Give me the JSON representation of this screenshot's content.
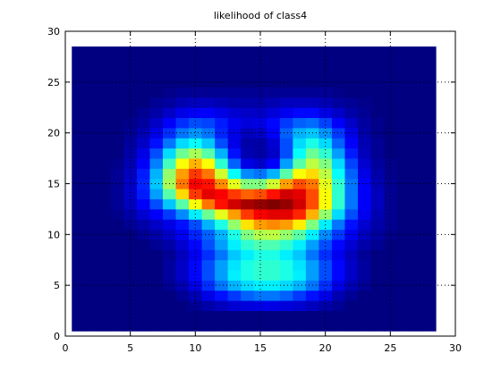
{
  "figure": {
    "background": "#ffffff",
    "axes_color": "#000000",
    "grid_color": "#000000"
  },
  "chart_data": {
    "type": "heatmap",
    "title": "likelihood of class4",
    "xlabel": "",
    "ylabel": "",
    "xlim": [
      0,
      30
    ],
    "ylim": [
      0,
      30
    ],
    "xticks": [
      0,
      5,
      10,
      15,
      20,
      25,
      30
    ],
    "yticks": [
      0,
      5,
      10,
      15,
      20,
      25,
      30
    ],
    "grid": "dotted",
    "colormap": "jet",
    "x_range": [
      1,
      28
    ],
    "y_range": [
      1,
      28
    ],
    "values_note_scale": [
      0,
      1
    ],
    "values": [
      [
        0,
        0,
        0,
        0,
        0,
        0,
        0,
        0,
        0,
        0,
        0,
        0,
        0,
        0,
        0,
        0,
        0,
        0,
        0,
        0,
        0,
        0,
        0,
        0,
        0,
        0,
        0,
        0
      ],
      [
        0,
        0,
        0,
        0,
        0,
        0,
        0,
        0,
        0,
        0,
        0,
        0,
        0,
        0,
        0,
        0,
        0,
        0,
        0,
        0,
        0,
        0,
        0,
        0,
        0,
        0,
        0,
        0
      ],
      [
        0,
        0,
        0,
        0,
        0,
        0,
        0,
        0,
        0,
        0.02,
        0.04,
        0.06,
        0.08,
        0.09,
        0.1,
        0.1,
        0.09,
        0.08,
        0.06,
        0.04,
        0.02,
        0,
        0,
        0,
        0,
        0,
        0,
        0
      ],
      [
        0,
        0,
        0,
        0,
        0,
        0,
        0,
        0,
        0.02,
        0.05,
        0.1,
        0.14,
        0.18,
        0.22,
        0.24,
        0.24,
        0.22,
        0.18,
        0.14,
        0.1,
        0.05,
        0.02,
        0,
        0,
        0,
        0,
        0,
        0
      ],
      [
        0,
        0,
        0,
        0,
        0,
        0,
        0,
        0.02,
        0.05,
        0.1,
        0.17,
        0.24,
        0.3,
        0.34,
        0.36,
        0.36,
        0.34,
        0.3,
        0.24,
        0.17,
        0.1,
        0.05,
        0.02,
        0,
        0,
        0,
        0,
        0
      ],
      [
        0,
        0,
        0,
        0,
        0,
        0,
        0,
        0.03,
        0.07,
        0.13,
        0.2,
        0.28,
        0.36,
        0.4,
        0.42,
        0.42,
        0.4,
        0.36,
        0.28,
        0.2,
        0.13,
        0.07,
        0.03,
        0,
        0,
        0,
        0,
        0
      ],
      [
        0,
        0,
        0,
        0,
        0,
        0,
        0,
        0.03,
        0.07,
        0.13,
        0.2,
        0.28,
        0.35,
        0.4,
        0.42,
        0.42,
        0.4,
        0.35,
        0.28,
        0.2,
        0.13,
        0.07,
        0.03,
        0,
        0,
        0,
        0,
        0
      ],
      [
        0,
        0,
        0,
        0,
        0,
        0,
        0,
        0.02,
        0.06,
        0.11,
        0.17,
        0.24,
        0.32,
        0.36,
        0.4,
        0.4,
        0.36,
        0.32,
        0.24,
        0.17,
        0.11,
        0.06,
        0.02,
        0,
        0,
        0,
        0,
        0
      ],
      [
        0,
        0,
        0,
        0,
        0,
        0,
        0.02,
        0.04,
        0.08,
        0.13,
        0.2,
        0.28,
        0.36,
        0.42,
        0.45,
        0.45,
        0.42,
        0.36,
        0.28,
        0.2,
        0.13,
        0.08,
        0.04,
        0.02,
        0,
        0,
        0,
        0
      ],
      [
        0,
        0,
        0,
        0,
        0,
        0.02,
        0.04,
        0.07,
        0.11,
        0.16,
        0.22,
        0.3,
        0.4,
        0.5,
        0.55,
        0.56,
        0.52,
        0.46,
        0.36,
        0.26,
        0.18,
        0.11,
        0.06,
        0.03,
        0.01,
        0,
        0,
        0
      ],
      [
        0,
        0,
        0,
        0,
        0.02,
        0.04,
        0.07,
        0.1,
        0.14,
        0.2,
        0.3,
        0.4,
        0.52,
        0.65,
        0.72,
        0.74,
        0.72,
        0.64,
        0.5,
        0.36,
        0.24,
        0.14,
        0.08,
        0.04,
        0.02,
        0,
        0,
        0
      ],
      [
        0,
        0,
        0,
        0.01,
        0.04,
        0.08,
        0.12,
        0.18,
        0.26,
        0.36,
        0.48,
        0.6,
        0.72,
        0.82,
        0.88,
        0.9,
        0.9,
        0.84,
        0.7,
        0.52,
        0.34,
        0.2,
        0.11,
        0.05,
        0.02,
        0,
        0,
        0
      ],
      [
        0,
        0,
        0,
        0.02,
        0.06,
        0.12,
        0.2,
        0.32,
        0.46,
        0.62,
        0.76,
        0.86,
        0.92,
        0.96,
        0.98,
        1.0,
        0.98,
        0.92,
        0.8,
        0.62,
        0.42,
        0.24,
        0.12,
        0.06,
        0.02,
        0,
        0,
        0
      ],
      [
        0,
        0,
        0,
        0.02,
        0.07,
        0.15,
        0.28,
        0.46,
        0.66,
        0.82,
        0.9,
        0.88,
        0.82,
        0.78,
        0.8,
        0.86,
        0.92,
        0.9,
        0.8,
        0.62,
        0.42,
        0.24,
        0.12,
        0.06,
        0.02,
        0,
        0,
        0
      ],
      [
        0,
        0,
        0,
        0.02,
        0.07,
        0.16,
        0.32,
        0.54,
        0.76,
        0.88,
        0.86,
        0.74,
        0.6,
        0.5,
        0.5,
        0.58,
        0.72,
        0.8,
        0.76,
        0.6,
        0.42,
        0.24,
        0.12,
        0.05,
        0.02,
        0,
        0,
        0
      ],
      [
        0,
        0,
        0,
        0.02,
        0.06,
        0.15,
        0.3,
        0.52,
        0.72,
        0.82,
        0.76,
        0.58,
        0.38,
        0.26,
        0.24,
        0.3,
        0.46,
        0.62,
        0.66,
        0.56,
        0.38,
        0.22,
        0.1,
        0.04,
        0.01,
        0,
        0,
        0
      ],
      [
        0,
        0,
        0,
        0.01,
        0.05,
        0.12,
        0.25,
        0.44,
        0.62,
        0.7,
        0.62,
        0.42,
        0.22,
        0.1,
        0.08,
        0.12,
        0.28,
        0.46,
        0.56,
        0.5,
        0.34,
        0.19,
        0.08,
        0.03,
        0.01,
        0,
        0,
        0
      ],
      [
        0,
        0,
        0,
        0,
        0.04,
        0.1,
        0.2,
        0.34,
        0.48,
        0.54,
        0.46,
        0.3,
        0.14,
        0.05,
        0.04,
        0.07,
        0.2,
        0.38,
        0.48,
        0.42,
        0.28,
        0.15,
        0.06,
        0.02,
        0,
        0,
        0,
        0
      ],
      [
        0,
        0,
        0,
        0,
        0.03,
        0.07,
        0.14,
        0.24,
        0.34,
        0.38,
        0.32,
        0.2,
        0.1,
        0.04,
        0.04,
        0.08,
        0.2,
        0.34,
        0.4,
        0.34,
        0.22,
        0.12,
        0.05,
        0.02,
        0,
        0,
        0,
        0
      ],
      [
        0,
        0,
        0,
        0,
        0.02,
        0.05,
        0.1,
        0.17,
        0.24,
        0.27,
        0.24,
        0.16,
        0.1,
        0.06,
        0.07,
        0.12,
        0.22,
        0.3,
        0.32,
        0.27,
        0.18,
        0.1,
        0.04,
        0.01,
        0,
        0,
        0,
        0
      ],
      [
        0,
        0,
        0,
        0,
        0.01,
        0.03,
        0.07,
        0.12,
        0.17,
        0.2,
        0.19,
        0.15,
        0.11,
        0.09,
        0.1,
        0.13,
        0.18,
        0.22,
        0.23,
        0.19,
        0.12,
        0.07,
        0.03,
        0.01,
        0,
        0,
        0,
        0
      ],
      [
        0,
        0,
        0,
        0,
        0,
        0.02,
        0.04,
        0.07,
        0.1,
        0.12,
        0.12,
        0.1,
        0.08,
        0.07,
        0.07,
        0.09,
        0.11,
        0.13,
        0.13,
        0.1,
        0.07,
        0.04,
        0.02,
        0,
        0,
        0,
        0,
        0
      ],
      [
        0,
        0,
        0,
        0,
        0,
        0,
        0.02,
        0.03,
        0.05,
        0.06,
        0.06,
        0.05,
        0.04,
        0.04,
        0.04,
        0.05,
        0.06,
        0.06,
        0.06,
        0.05,
        0.03,
        0.02,
        0.01,
        0,
        0,
        0,
        0,
        0
      ],
      [
        0,
        0,
        0,
        0,
        0,
        0,
        0,
        0.01,
        0.02,
        0.02,
        0.02,
        0.02,
        0.02,
        0.02,
        0.02,
        0.02,
        0.02,
        0.02,
        0.02,
        0.02,
        0.01,
        0,
        0,
        0,
        0,
        0,
        0,
        0
      ],
      [
        0,
        0,
        0,
        0,
        0,
        0,
        0,
        0,
        0,
        0,
        0,
        0,
        0,
        0,
        0,
        0,
        0,
        0,
        0,
        0,
        0,
        0,
        0,
        0,
        0,
        0,
        0,
        0
      ],
      [
        0,
        0,
        0,
        0,
        0,
        0,
        0,
        0,
        0,
        0,
        0,
        0,
        0,
        0,
        0,
        0,
        0,
        0,
        0,
        0,
        0,
        0,
        0,
        0,
        0,
        0,
        0,
        0
      ],
      [
        0,
        0,
        0,
        0,
        0,
        0,
        0,
        0,
        0,
        0,
        0,
        0,
        0,
        0,
        0,
        0,
        0,
        0,
        0,
        0,
        0,
        0,
        0,
        0,
        0,
        0,
        0,
        0
      ],
      [
        0,
        0,
        0,
        0,
        0,
        0,
        0,
        0,
        0,
        0,
        0,
        0,
        0,
        0,
        0,
        0,
        0,
        0,
        0,
        0,
        0,
        0,
        0,
        0,
        0,
        0,
        0,
        0
      ]
    ]
  }
}
